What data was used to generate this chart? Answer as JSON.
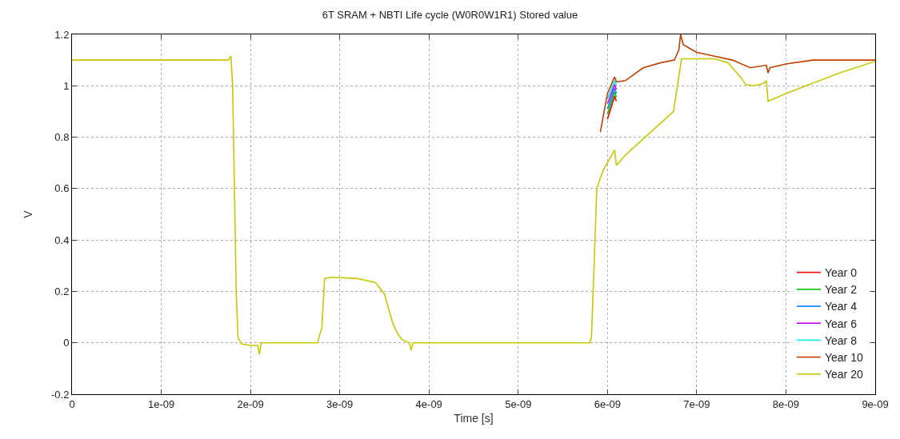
{
  "chart_data": {
    "type": "line",
    "title": "6T SRAM + NBTI Life cycle (W0R0W1R1) Stored value",
    "xlabel": "Time [s]",
    "ylabel": "V",
    "x": [
      5.92e-09,
      6e-09,
      6.08e-09,
      6.1e-09,
      6.2e-09,
      6.4e-09,
      6.6e-09,
      6.75e-09,
      6.8e-09,
      6.82e-09,
      6.85e-09,
      7e-09,
      7.2e-09,
      7.4e-09,
      7.6e-09,
      7.78e-09,
      7.8e-09,
      7.82e-09,
      8e-09,
      8.3e-09,
      9e-09
    ],
    "series": [
      {
        "name": "Year 0",
        "color": "#ff0000",
        "values": [
          null,
          0.87,
          0.96,
          0.94,
          null,
          null,
          null,
          null,
          null,
          null,
          null,
          null,
          null,
          null,
          null,
          null,
          null,
          null,
          null,
          null,
          null
        ]
      },
      {
        "name": "Year 2",
        "color": "#00c000",
        "values": [
          null,
          0.89,
          0.975,
          0.955,
          null,
          null,
          null,
          null,
          null,
          null,
          null,
          null,
          null,
          null,
          null,
          null,
          null,
          null,
          null,
          null,
          null
        ]
      },
      {
        "name": "Year 4",
        "color": "#0080ff",
        "values": [
          null,
          0.91,
          0.99,
          0.97,
          null,
          null,
          null,
          null,
          null,
          null,
          null,
          null,
          null,
          null,
          null,
          null,
          null,
          null,
          null,
          null,
          null
        ]
      },
      {
        "name": "Year 6",
        "color": "#c000ff",
        "values": [
          null,
          0.93,
          1.005,
          0.985,
          null,
          null,
          null,
          null,
          null,
          null,
          null,
          null,
          null,
          null,
          null,
          null,
          null,
          null,
          null,
          null,
          null
        ]
      },
      {
        "name": "Year 8",
        "color": "#00eeee",
        "values": [
          null,
          0.95,
          1.02,
          1.0,
          null,
          null,
          null,
          null,
          null,
          null,
          null,
          null,
          null,
          null,
          null,
          null,
          null,
          null,
          null,
          null,
          null
        ]
      },
      {
        "name": "Year 10",
        "color": "#c04000",
        "values": [
          0.82,
          0.97,
          1.035,
          1.015,
          1.02,
          1.07,
          1.09,
          1.1,
          1.14,
          1.2,
          1.16,
          1.13,
          1.115,
          1.1,
          1.07,
          1.08,
          1.05,
          1.07,
          1.085,
          1.1,
          1.1
        ]
      },
      {
        "name": "Year 20",
        "color": "#c8c800",
        "x": [
          0,
          1.75e-09,
          1.78e-09,
          1.8e-09,
          1.82e-09,
          1.84e-09,
          1.86e-09,
          1.9e-09,
          2e-09,
          2.08e-09,
          2.1e-09,
          2.12e-09,
          2.2e-09,
          2.75e-09,
          2.8e-09,
          2.83e-09,
          2.9e-09,
          3.2e-09,
          3.4e-09,
          3.5e-09,
          3.55e-09,
          3.6e-09,
          3.65e-09,
          3.7e-09,
          3.78e-09,
          3.8e-09,
          3.82e-09,
          5.8e-09,
          5.82e-09,
          5.85e-09,
          5.88e-09,
          5.95e-09,
          6.08e-09,
          6.1e-09,
          6.2e-09,
          6.74e-09,
          6.83e-09,
          7.2e-09,
          7.35e-09,
          7.5e-09,
          7.55e-09,
          7.65e-09,
          7.75e-09,
          7.78e-09,
          7.8e-09,
          8e-09,
          8.3e-09,
          8.6e-09,
          9e-09
        ],
        "values": [
          1.1,
          1.1,
          1.115,
          1.0,
          0.6,
          0.2,
          0.02,
          -0.005,
          -0.01,
          -0.01,
          -0.045,
          0,
          0,
          0,
          0.06,
          0.25,
          0.255,
          0.25,
          0.235,
          0.19,
          0.13,
          0.07,
          0.035,
          0.012,
          0,
          -0.03,
          0,
          0,
          0.02,
          0.3,
          0.6,
          0.67,
          0.75,
          0.69,
          0.73,
          0.9,
          1.105,
          1.105,
          1.09,
          1.03,
          1.005,
          1.0,
          1.01,
          1.02,
          0.94,
          0.97,
          1.01,
          1.05,
          1.095
        ]
      }
    ],
    "xlim": [
      0,
      9e-09
    ],
    "xticks": [
      0,
      {
        "value": 1e-09,
        "label": "1e-09"
      },
      {
        "value": 2e-09,
        "label": "2e-09"
      },
      {
        "value": 3e-09,
        "label": "3e-09"
      },
      {
        "value": 4e-09,
        "label": "4e-09"
      },
      {
        "value": 5e-09,
        "label": "5e-09"
      },
      {
        "value": 6e-09,
        "label": "6e-09"
      },
      {
        "value": 7e-09,
        "label": "7e-09"
      },
      {
        "value": 8e-09,
        "label": "8e-09"
      },
      {
        "value": 9e-09,
        "label": "9e-09"
      }
    ],
    "ylim": [
      -0.2,
      1.2
    ],
    "yticks": [
      -0.2,
      0,
      0.2,
      0.4,
      0.6,
      0.8,
      1,
      1.2
    ],
    "grid": true,
    "legend": "bottom right"
  }
}
